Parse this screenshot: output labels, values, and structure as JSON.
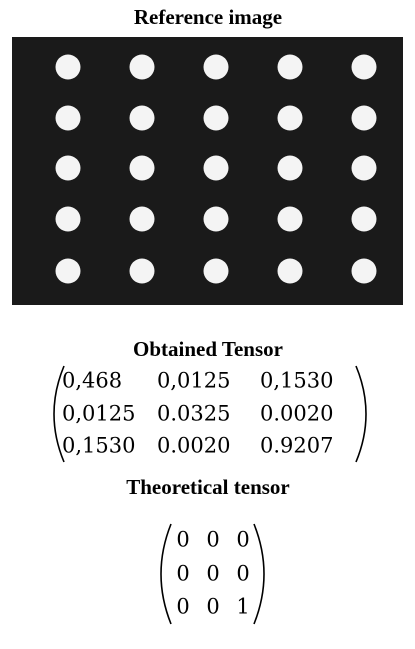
{
  "reference": {
    "title": "Reference image"
  },
  "obtained": {
    "title": "Obtained Tensor",
    "rows": [
      [
        "0,468",
        "0,0125",
        "0,1530"
      ],
      [
        "0,0125",
        "0.0325",
        "0.0020"
      ],
      [
        "0,1530",
        "0.0020",
        "0.9207"
      ]
    ]
  },
  "theoretical": {
    "title": "Theoretical tensor",
    "rows": [
      [
        "0",
        "0",
        "0"
      ],
      [
        "0",
        "0",
        "0"
      ],
      [
        "0",
        "0",
        "1"
      ]
    ]
  }
}
